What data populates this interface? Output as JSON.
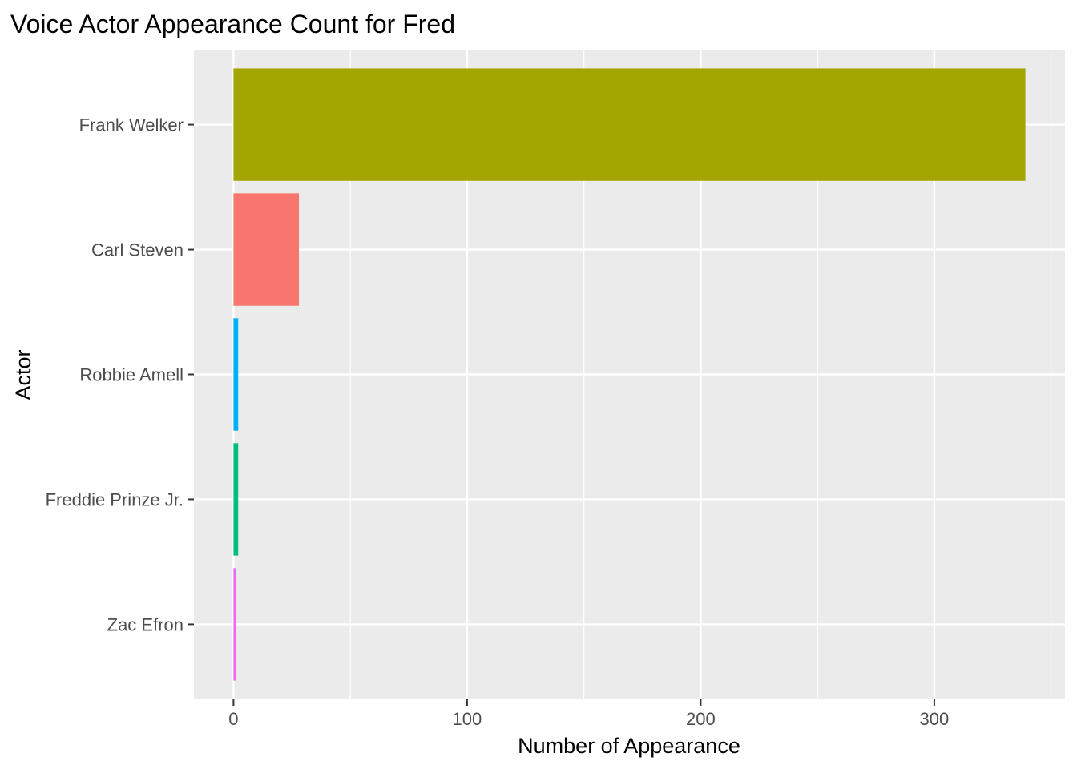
{
  "chart_data": {
    "type": "bar",
    "orientation": "horizontal",
    "title": "Voice Actor Appearance Count for Fred",
    "xlabel": "Number of Appearance",
    "ylabel": "Actor",
    "categories": [
      "Frank Welker",
      "Carl Steven",
      "Robbie Amell",
      "Freddie Prinze Jr.",
      "Zac Efron"
    ],
    "values": [
      339,
      28,
      2,
      2,
      1
    ],
    "bar_colors": [
      "#A3A500",
      "#F8766D",
      "#00B0F6",
      "#00BF7D",
      "#E76BF3"
    ],
    "xlim": [
      -16.95,
      355.95
    ],
    "x_ticks": [
      0,
      100,
      200,
      300
    ],
    "x_minor_ticks": [
      50,
      150,
      250,
      350
    ],
    "grid": true,
    "legend": "none",
    "panel_background": "#EBEBEB",
    "grid_color": "#FFFFFF"
  }
}
